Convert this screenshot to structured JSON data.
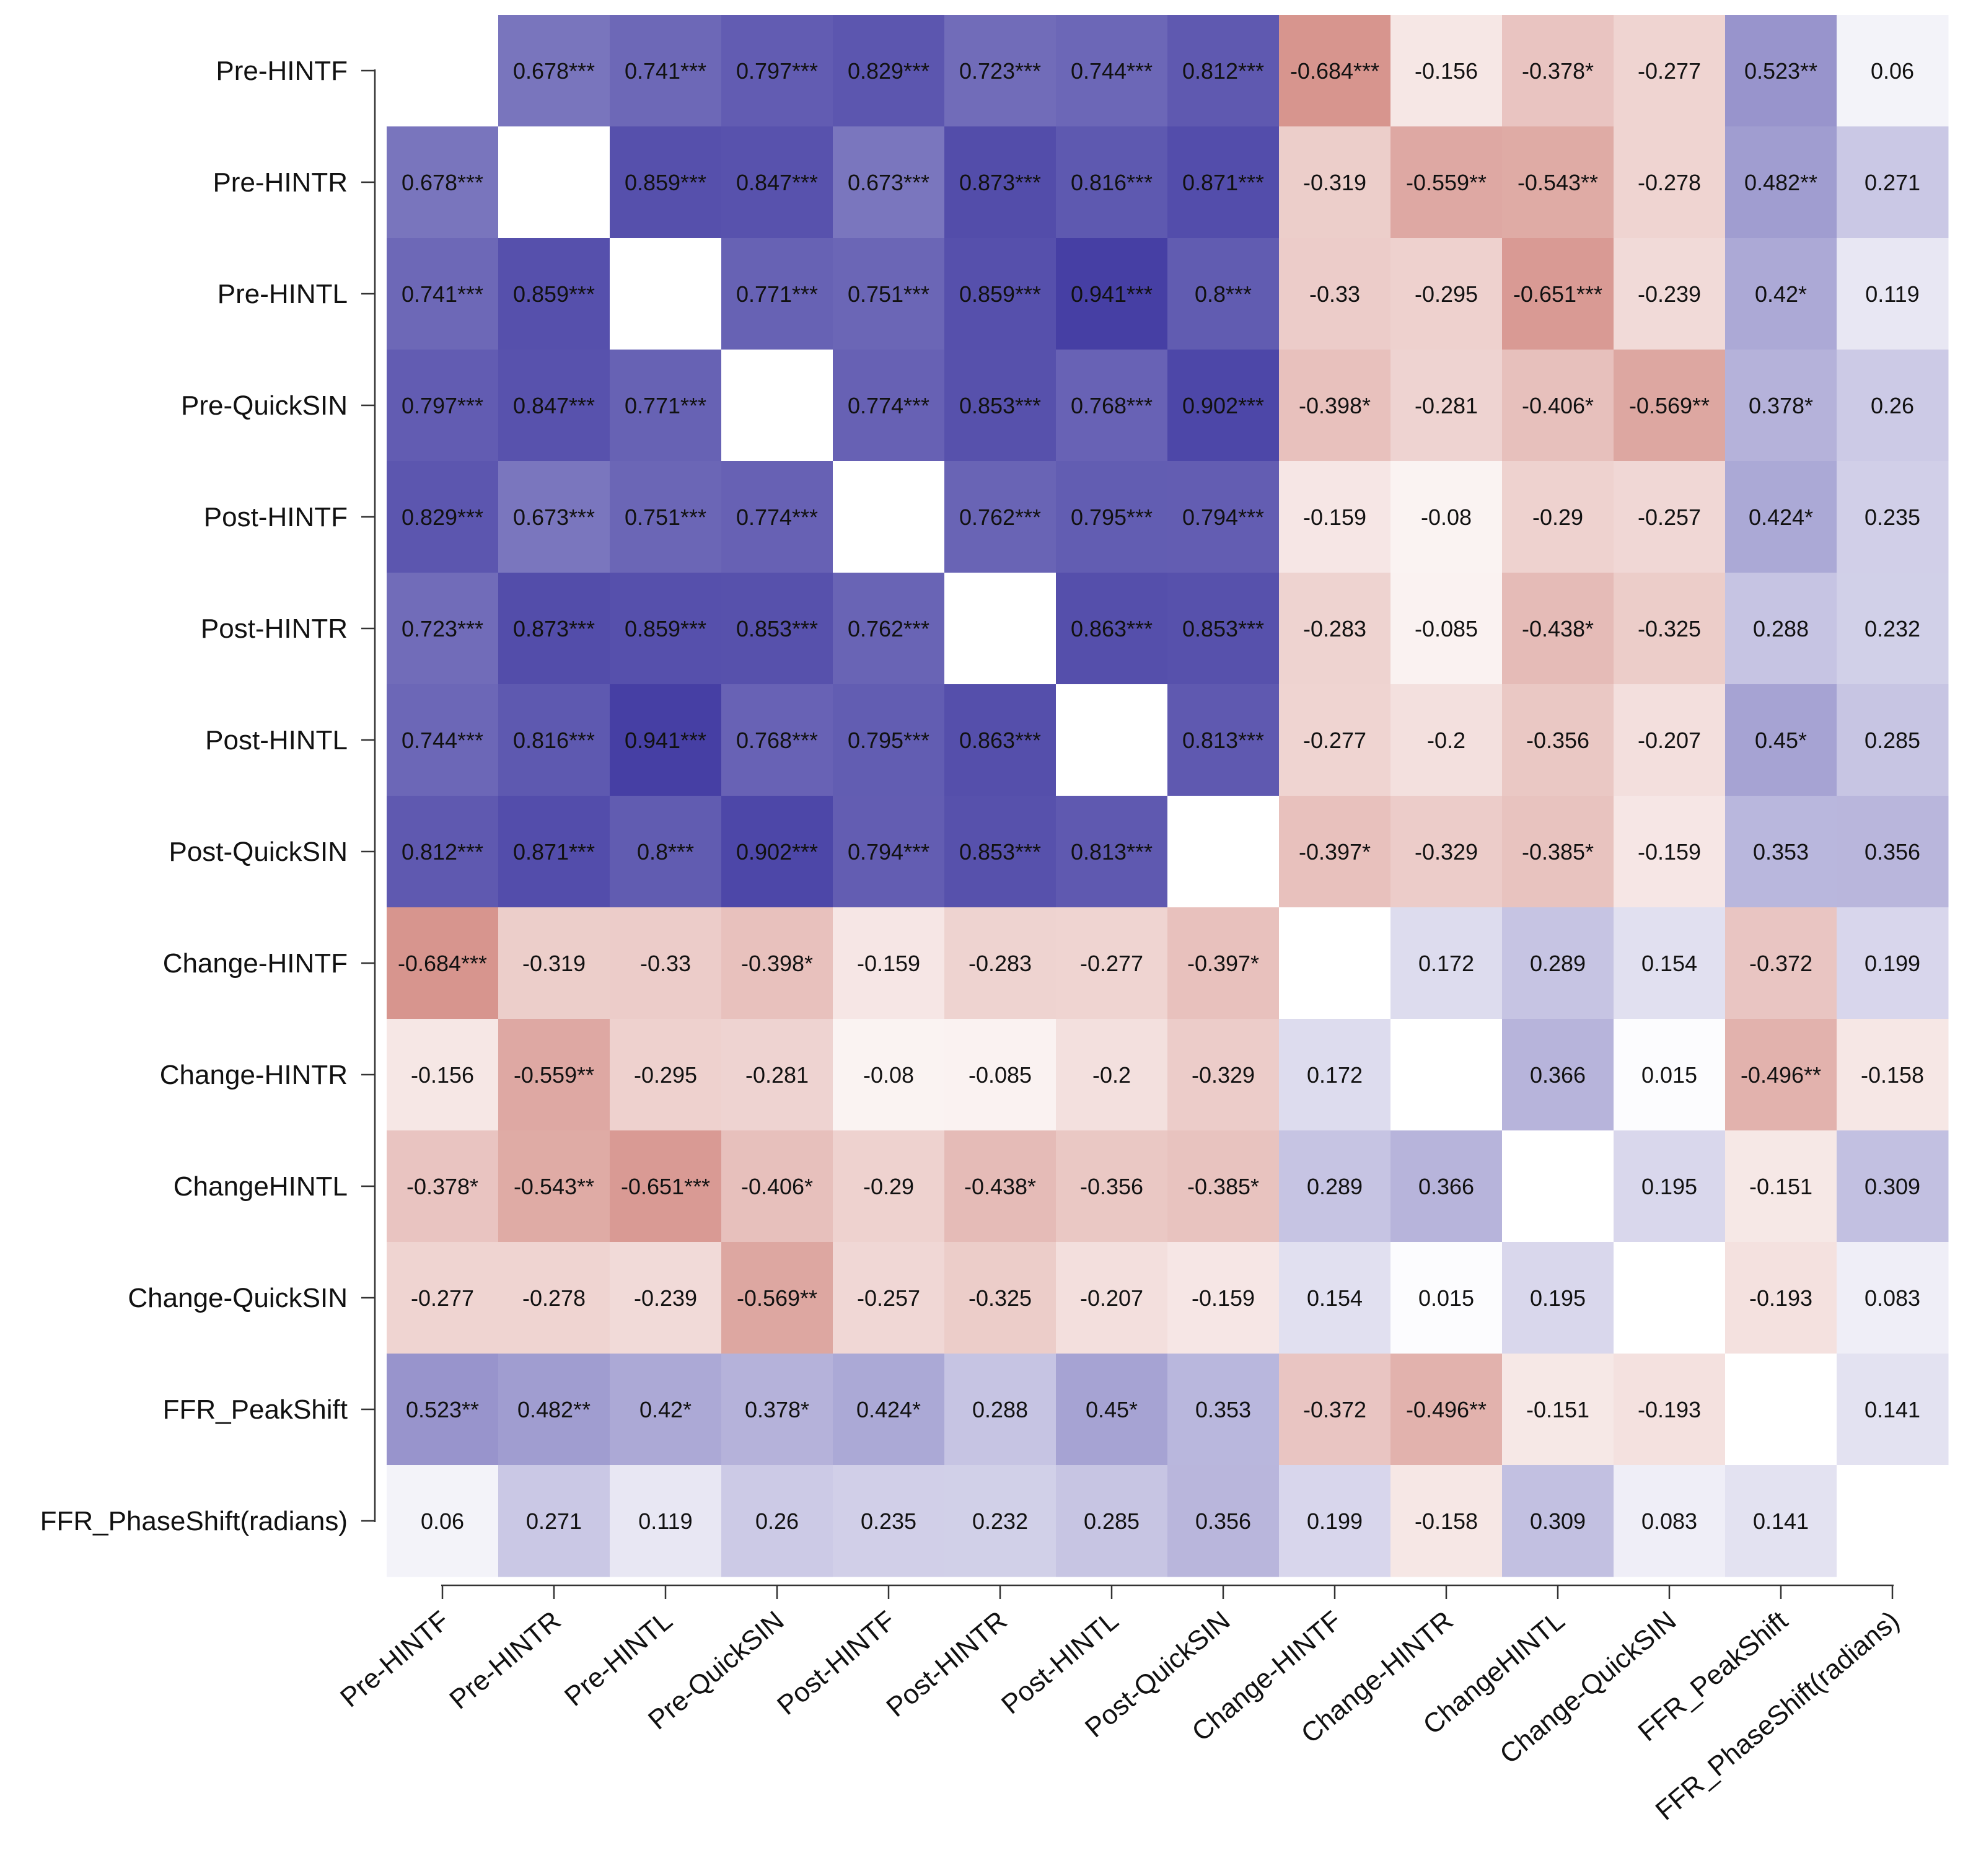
{
  "chart_data": {
    "type": "heatmap",
    "title": "",
    "xlabel": "",
    "ylabel": "",
    "color_scale": {
      "negative": "#c4645a",
      "zero": "#ffffff",
      "positive": "#3a339e",
      "range": [
        -1,
        1
      ]
    },
    "diagonal_blank": true,
    "variables": [
      "Pre-HINTF",
      "Pre-HINTR",
      "Pre-HINTL",
      "Pre-QuickSIN",
      "Post-HINTF",
      "Post-HINTR",
      "Post-HINTL",
      "Post-QuickSIN",
      "Change-HINTF",
      "Change-HINTR",
      "ChangeHINTL",
      "Change-QuickSIN",
      "FFR_PeakShift",
      "FFR_PhaseShift(radians)"
    ],
    "values": [
      [
        null,
        0.678,
        0.741,
        0.797,
        0.829,
        0.723,
        0.744,
        0.812,
        -0.684,
        -0.156,
        -0.378,
        -0.277,
        0.523,
        0.06
      ],
      [
        0.678,
        null,
        0.859,
        0.847,
        0.673,
        0.873,
        0.816,
        0.871,
        -0.319,
        -0.559,
        -0.543,
        -0.278,
        0.482,
        0.271
      ],
      [
        0.741,
        0.859,
        null,
        0.771,
        0.751,
        0.859,
        0.941,
        0.8,
        -0.33,
        -0.295,
        -0.651,
        -0.239,
        0.42,
        0.119
      ],
      [
        0.797,
        0.847,
        0.771,
        null,
        0.774,
        0.853,
        0.768,
        0.902,
        -0.398,
        -0.281,
        -0.406,
        -0.569,
        0.378,
        0.26
      ],
      [
        0.829,
        0.673,
        0.751,
        0.774,
        null,
        0.762,
        0.795,
        0.794,
        -0.159,
        -0.08,
        -0.29,
        -0.257,
        0.424,
        0.235
      ],
      [
        0.723,
        0.873,
        0.859,
        0.853,
        0.762,
        null,
        0.863,
        0.853,
        -0.283,
        -0.085,
        -0.438,
        -0.325,
        0.288,
        0.232
      ],
      [
        0.744,
        0.816,
        0.941,
        0.768,
        0.795,
        0.863,
        null,
        0.813,
        -0.277,
        -0.2,
        -0.356,
        -0.207,
        0.45,
        0.285
      ],
      [
        0.812,
        0.871,
        0.8,
        0.902,
        0.794,
        0.853,
        0.813,
        null,
        -0.397,
        -0.329,
        -0.385,
        -0.159,
        0.353,
        0.356
      ],
      [
        -0.684,
        -0.319,
        -0.33,
        -0.398,
        -0.159,
        -0.283,
        -0.277,
        -0.397,
        null,
        0.172,
        0.289,
        0.154,
        -0.372,
        0.199
      ],
      [
        -0.156,
        -0.559,
        -0.295,
        -0.281,
        -0.08,
        -0.085,
        -0.2,
        -0.329,
        0.172,
        null,
        0.366,
        0.015,
        -0.496,
        -0.158
      ],
      [
        -0.378,
        -0.543,
        -0.651,
        -0.406,
        -0.29,
        -0.438,
        -0.356,
        -0.385,
        0.289,
        0.366,
        null,
        0.195,
        -0.151,
        0.309
      ],
      [
        -0.277,
        -0.278,
        -0.239,
        -0.569,
        -0.257,
        -0.325,
        -0.207,
        -0.159,
        0.154,
        0.015,
        0.195,
        null,
        -0.193,
        0.083
      ],
      [
        0.523,
        0.482,
        0.42,
        0.378,
        0.424,
        0.288,
        0.45,
        0.353,
        -0.372,
        -0.496,
        -0.151,
        -0.193,
        null,
        0.141
      ],
      [
        0.06,
        0.271,
        0.119,
        0.26,
        0.235,
        0.232,
        0.285,
        0.356,
        0.199,
        -0.158,
        0.309,
        0.083,
        0.141,
        null
      ]
    ],
    "labels": [
      [
        "",
        "0.678***",
        "0.741***",
        "0.797***",
        "0.829***",
        "0.723***",
        "0.744***",
        "0.812***",
        "-0.684***",
        "-0.156",
        "-0.378*",
        "-0.277",
        "0.523**",
        "0.06"
      ],
      [
        "0.678***",
        "",
        "0.859***",
        "0.847***",
        "0.673***",
        "0.873***",
        "0.816***",
        "0.871***",
        "-0.319",
        "-0.559**",
        "-0.543**",
        "-0.278",
        "0.482**",
        "0.271"
      ],
      [
        "0.741***",
        "0.859***",
        "",
        "0.771***",
        "0.751***",
        "0.859***",
        "0.941***",
        "0.8***",
        "-0.33",
        "-0.295",
        "-0.651***",
        "-0.239",
        "0.42*",
        "0.119"
      ],
      [
        "0.797***",
        "0.847***",
        "0.771***",
        "",
        "0.774***",
        "0.853***",
        "0.768***",
        "0.902***",
        "-0.398*",
        "-0.281",
        "-0.406*",
        "-0.569**",
        "0.378*",
        "0.26"
      ],
      [
        "0.829***",
        "0.673***",
        "0.751***",
        "0.774***",
        "",
        "0.762***",
        "0.795***",
        "0.794***",
        "-0.159",
        "-0.08",
        "-0.29",
        "-0.257",
        "0.424*",
        "0.235"
      ],
      [
        "0.723***",
        "0.873***",
        "0.859***",
        "0.853***",
        "0.762***",
        "",
        "0.863***",
        "0.853***",
        "-0.283",
        "-0.085",
        "-0.438*",
        "-0.325",
        "0.288",
        "0.232"
      ],
      [
        "0.744***",
        "0.816***",
        "0.941***",
        "0.768***",
        "0.795***",
        "0.863***",
        "",
        "0.813***",
        "-0.277",
        "-0.2",
        "-0.356",
        "-0.207",
        "0.45*",
        "0.285"
      ],
      [
        "0.812***",
        "0.871***",
        "0.8***",
        "0.902***",
        "0.794***",
        "0.853***",
        "0.813***",
        "",
        "-0.397*",
        "-0.329",
        "-0.385*",
        "-0.159",
        "0.353",
        "0.356"
      ],
      [
        "-0.684***",
        "-0.319",
        "-0.33",
        "-0.398*",
        "-0.159",
        "-0.283",
        "-0.277",
        "-0.397*",
        "",
        "0.172",
        "0.289",
        "0.154",
        "-0.372",
        "0.199"
      ],
      [
        "-0.156",
        "-0.559**",
        "-0.295",
        "-0.281",
        "-0.08",
        "-0.085",
        "-0.2",
        "-0.329",
        "0.172",
        "",
        "0.366",
        "0.015",
        "-0.496**",
        "-0.158"
      ],
      [
        "-0.378*",
        "-0.543**",
        "-0.651***",
        "-0.406*",
        "-0.29",
        "-0.438*",
        "-0.356",
        "-0.385*",
        "0.289",
        "0.366",
        "",
        "0.195",
        "-0.151",
        "0.309"
      ],
      [
        "-0.277",
        "-0.278",
        "-0.239",
        "-0.569**",
        "-0.257",
        "-0.325",
        "-0.207",
        "-0.159",
        "0.154",
        "0.015",
        "0.195",
        "",
        "-0.193",
        "0.083"
      ],
      [
        "0.523**",
        "0.482**",
        "0.42*",
        "0.378*",
        "0.424*",
        "0.288",
        "0.45*",
        "0.353",
        "-0.372",
        "-0.496**",
        "-0.151",
        "-0.193",
        "",
        "0.141"
      ],
      [
        "0.06",
        "0.271",
        "0.119",
        "0.26",
        "0.235",
        "0.232",
        "0.285",
        "0.356",
        "0.199",
        "-0.158",
        "0.309",
        "0.083",
        "0.141",
        ""
      ]
    ]
  }
}
